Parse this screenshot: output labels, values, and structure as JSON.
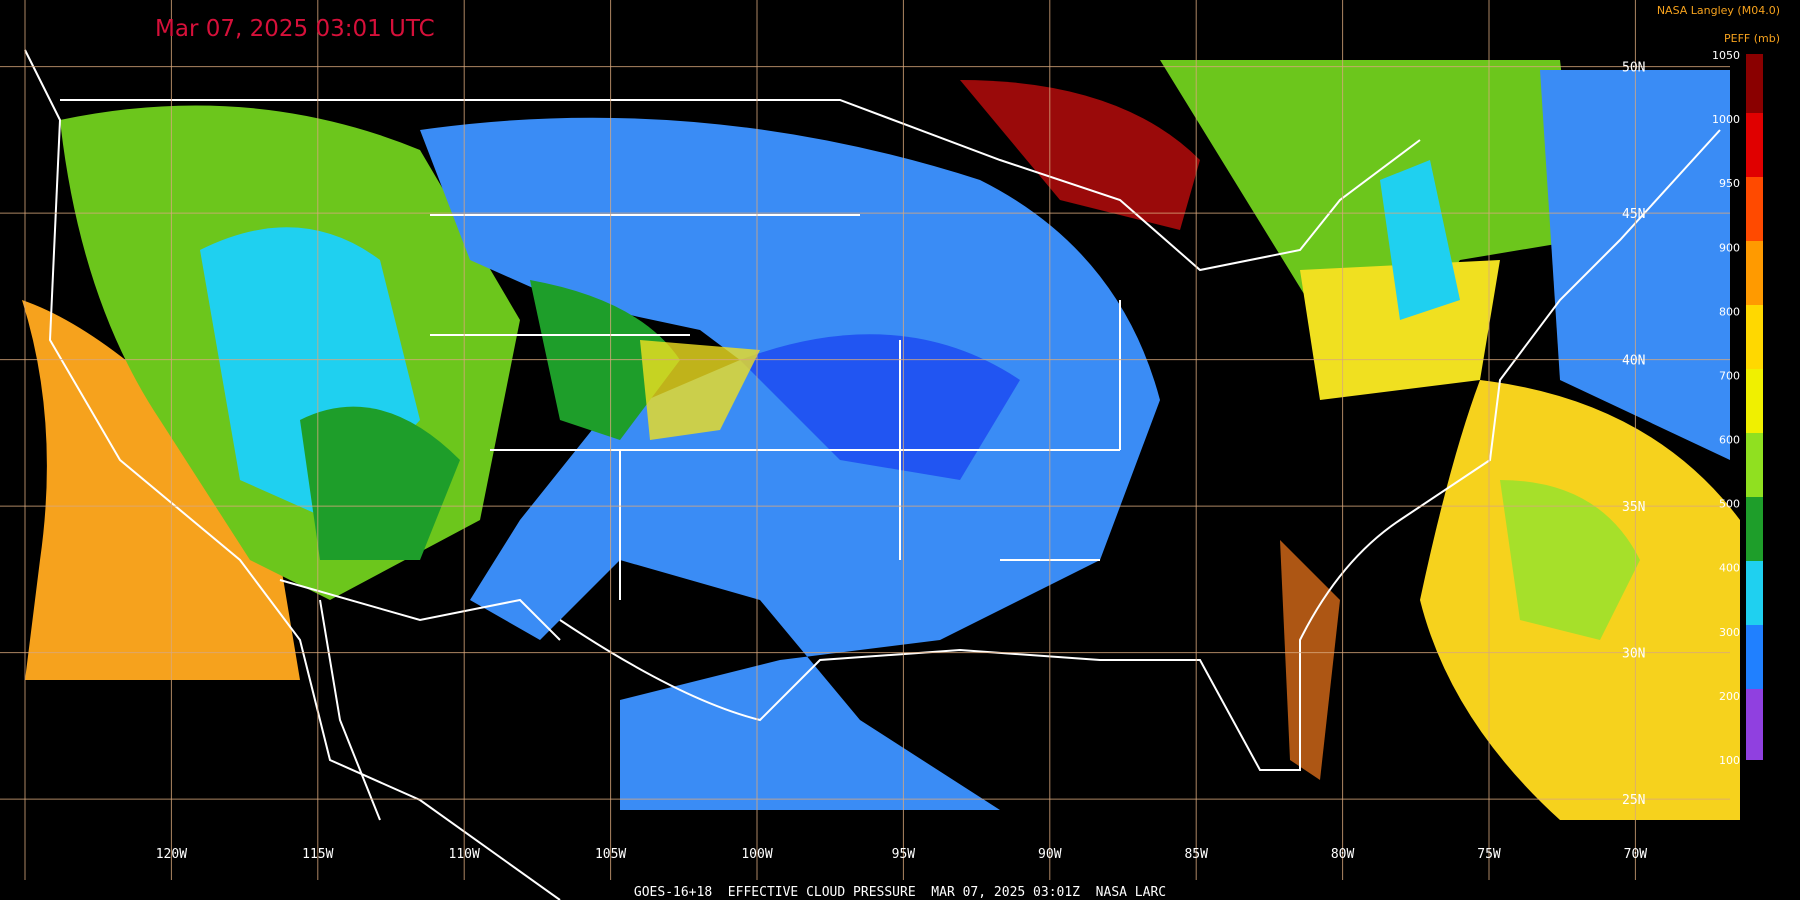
{
  "header": {
    "title": "Mar 07, 2025 03:01 UTC",
    "source": "NASA Langley (M04.0)"
  },
  "legend": {
    "label": "PEFF (mb)",
    "ticks": [
      1050,
      1000,
      950,
      900,
      800,
      700,
      600,
      500,
      400,
      300,
      200,
      100
    ]
  },
  "map": {
    "longitudes": [
      "120W",
      "115W",
      "110W",
      "105W",
      "100W",
      "95W",
      "90W",
      "85W",
      "80W",
      "75W",
      "70W"
    ],
    "latitudes": [
      "50N",
      "45N",
      "40N",
      "35N",
      "30N",
      "25N"
    ]
  },
  "footer": "GOES-16+18  EFFECTIVE CLOUD PRESSURE  MAR 07, 2025 03:01Z  NASA LARC"
}
